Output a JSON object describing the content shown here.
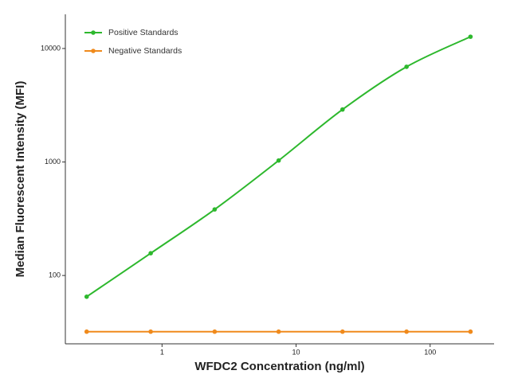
{
  "chart_data": {
    "type": "line",
    "x_label": "WFDC2 Concentration (ng/ml)",
    "y_label": "Median  Fluorescent Intensity  (MFI)",
    "x": [
      0.274,
      0.823,
      2.47,
      7.41,
      22.2,
      66.7,
      200
    ],
    "series": [
      {
        "name": "Positive Standards",
        "color": "#2db82d",
        "values": [
          65,
          157,
          382,
          1030,
          2900,
          6900,
          12700
        ]
      },
      {
        "name": "Negative Standards",
        "color": "#f08a1c",
        "values": [
          32,
          32,
          32,
          32,
          32,
          32,
          32
        ]
      }
    ],
    "xlim": [
      0.19,
      300
    ],
    "ylim": [
      25,
      20000
    ],
    "xticks": [
      1,
      10,
      100
    ],
    "yticks": [
      100,
      1000,
      10000
    ],
    "log_x": true,
    "log_y": true,
    "legend": "top-left"
  }
}
